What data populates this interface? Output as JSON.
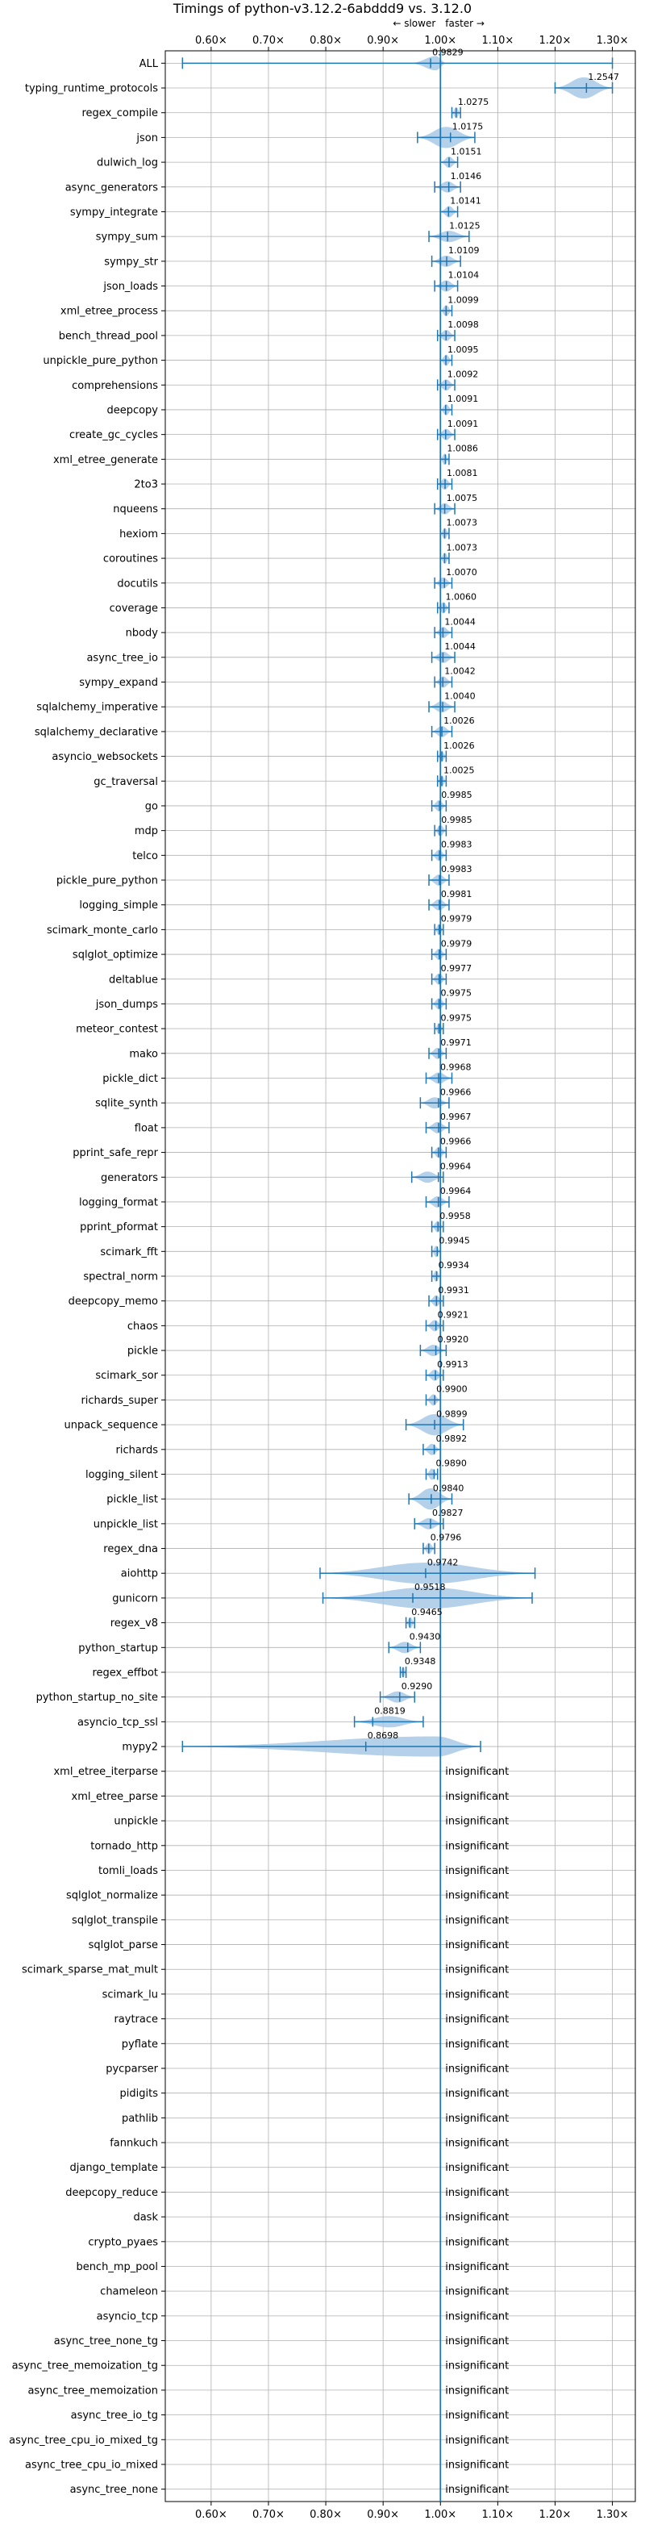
{
  "chart_data": {
    "type": "violin",
    "title": "Timings of python-v3.12.2-6abddd9 vs. 3.12.0",
    "direction_labels": {
      "slower": "← slower",
      "faster": "faster →"
    },
    "xlim": [
      0.52,
      1.34
    ],
    "x_ticks": [
      0.6,
      0.7,
      0.8,
      0.9,
      1.0,
      1.1,
      1.2,
      1.3
    ],
    "x_tick_labels": [
      "0.60×",
      "0.70×",
      "0.80×",
      "0.90×",
      "1.00×",
      "1.10×",
      "1.20×",
      "1.30×"
    ],
    "reference_line": 1.0,
    "grid": true,
    "insignificant_text": "insignificant",
    "benchmarks": [
      {
        "name": "ALL",
        "value": 0.9829,
        "label": "0.9829",
        "min": 0.55,
        "max": 1.3,
        "shape": "all"
      },
      {
        "name": "typing_runtime_protocols",
        "value": 1.2547,
        "label": "1.2547",
        "min": 1.2,
        "max": 1.3,
        "shape": "wide"
      },
      {
        "name": "regex_compile",
        "value": 1.0275,
        "label": "1.0275",
        "min": 1.02,
        "max": 1.035,
        "shape": "box"
      },
      {
        "name": "json",
        "value": 1.0175,
        "label": "1.0175",
        "min": 0.96,
        "max": 1.06,
        "shape": "wide"
      },
      {
        "name": "dulwich_log",
        "value": 1.0151,
        "label": "1.0151",
        "min": 1.0,
        "max": 1.03,
        "shape": "box"
      },
      {
        "name": "async_generators",
        "value": 1.0146,
        "label": "1.0146",
        "min": 0.99,
        "max": 1.035,
        "shape": "box"
      },
      {
        "name": "sympy_integrate",
        "value": 1.0141,
        "label": "1.0141",
        "min": 1.0,
        "max": 1.03,
        "shape": "box"
      },
      {
        "name": "sympy_sum",
        "value": 1.0125,
        "label": "1.0125",
        "min": 0.98,
        "max": 1.05,
        "shape": "box"
      },
      {
        "name": "sympy_str",
        "value": 1.0109,
        "label": "1.0109",
        "min": 0.985,
        "max": 1.035,
        "shape": "box"
      },
      {
        "name": "json_loads",
        "value": 1.0104,
        "label": "1.0104",
        "min": 0.99,
        "max": 1.03,
        "shape": "box"
      },
      {
        "name": "xml_etree_process",
        "value": 1.0099,
        "label": "1.0099",
        "min": 1.0,
        "max": 1.02,
        "shape": "box"
      },
      {
        "name": "bench_thread_pool",
        "value": 1.0098,
        "label": "1.0098",
        "min": 0.995,
        "max": 1.025,
        "shape": "box"
      },
      {
        "name": "unpickle_pure_python",
        "value": 1.0095,
        "label": "1.0095",
        "min": 1.0,
        "max": 1.02,
        "shape": "box"
      },
      {
        "name": "comprehensions",
        "value": 1.0092,
        "label": "1.0092",
        "min": 0.995,
        "max": 1.025,
        "shape": "box"
      },
      {
        "name": "deepcopy",
        "value": 1.0091,
        "label": "1.0091",
        "min": 1.0,
        "max": 1.02,
        "shape": "box"
      },
      {
        "name": "create_gc_cycles",
        "value": 1.0091,
        "label": "1.0091",
        "min": 0.995,
        "max": 1.025,
        "shape": "box"
      },
      {
        "name": "xml_etree_generate",
        "value": 1.0086,
        "label": "1.0086",
        "min": 1.0,
        "max": 1.015,
        "shape": "box"
      },
      {
        "name": "2to3",
        "value": 1.0081,
        "label": "1.0081",
        "min": 0.995,
        "max": 1.02,
        "shape": "box"
      },
      {
        "name": "nqueens",
        "value": 1.0075,
        "label": "1.0075",
        "min": 0.99,
        "max": 1.025,
        "shape": "box"
      },
      {
        "name": "hexiom",
        "value": 1.0073,
        "label": "1.0073",
        "min": 1.0,
        "max": 1.015,
        "shape": "box"
      },
      {
        "name": "coroutines",
        "value": 1.0073,
        "label": "1.0073",
        "min": 1.0,
        "max": 1.015,
        "shape": "box"
      },
      {
        "name": "docutils",
        "value": 1.007,
        "label": "1.0070",
        "min": 0.99,
        "max": 1.02,
        "shape": "box"
      },
      {
        "name": "coverage",
        "value": 1.006,
        "label": "1.0060",
        "min": 0.995,
        "max": 1.015,
        "shape": "box"
      },
      {
        "name": "nbody",
        "value": 1.0044,
        "label": "1.0044",
        "min": 0.99,
        "max": 1.02,
        "shape": "box"
      },
      {
        "name": "async_tree_io",
        "value": 1.0044,
        "label": "1.0044",
        "min": 0.985,
        "max": 1.025,
        "shape": "box"
      },
      {
        "name": "sympy_expand",
        "value": 1.0042,
        "label": "1.0042",
        "min": 0.99,
        "max": 1.02,
        "shape": "box"
      },
      {
        "name": "sqlalchemy_imperative",
        "value": 1.004,
        "label": "1.0040",
        "min": 0.98,
        "max": 1.025,
        "shape": "box"
      },
      {
        "name": "sqlalchemy_declarative",
        "value": 1.0026,
        "label": "1.0026",
        "min": 0.985,
        "max": 1.02,
        "shape": "box"
      },
      {
        "name": "asyncio_websockets",
        "value": 1.0026,
        "label": "1.0026",
        "min": 0.995,
        "max": 1.01,
        "shape": "box"
      },
      {
        "name": "gc_traversal",
        "value": 1.0025,
        "label": "1.0025",
        "min": 0.995,
        "max": 1.01,
        "shape": "box"
      },
      {
        "name": "go",
        "value": 0.9985,
        "label": "0.9985",
        "min": 0.985,
        "max": 1.01,
        "shape": "box"
      },
      {
        "name": "mdp",
        "value": 0.9985,
        "label": "0.9985",
        "min": 0.99,
        "max": 1.01,
        "shape": "box"
      },
      {
        "name": "telco",
        "value": 0.9983,
        "label": "0.9983",
        "min": 0.985,
        "max": 1.01,
        "shape": "box"
      },
      {
        "name": "pickle_pure_python",
        "value": 0.9983,
        "label": "0.9983",
        "min": 0.98,
        "max": 1.015,
        "shape": "box"
      },
      {
        "name": "logging_simple",
        "value": 0.9981,
        "label": "0.9981",
        "min": 0.98,
        "max": 1.015,
        "shape": "box"
      },
      {
        "name": "scimark_monte_carlo",
        "value": 0.9979,
        "label": "0.9979",
        "min": 0.99,
        "max": 1.005,
        "shape": "box"
      },
      {
        "name": "sqlglot_optimize",
        "value": 0.9979,
        "label": "0.9979",
        "min": 0.985,
        "max": 1.01,
        "shape": "box"
      },
      {
        "name": "deltablue",
        "value": 0.9977,
        "label": "0.9977",
        "min": 0.985,
        "max": 1.01,
        "shape": "box"
      },
      {
        "name": "json_dumps",
        "value": 0.9975,
        "label": "0.9975",
        "min": 0.985,
        "max": 1.01,
        "shape": "box"
      },
      {
        "name": "meteor_contest",
        "value": 0.9975,
        "label": "0.9975",
        "min": 0.99,
        "max": 1.005,
        "shape": "box"
      },
      {
        "name": "mako",
        "value": 0.9971,
        "label": "0.9971",
        "min": 0.98,
        "max": 1.01,
        "shape": "box"
      },
      {
        "name": "pickle_dict",
        "value": 0.9968,
        "label": "0.9968",
        "min": 0.975,
        "max": 1.02,
        "shape": "box"
      },
      {
        "name": "sqlite_synth",
        "value": 0.9966,
        "label": "0.9966",
        "min": 0.965,
        "max": 1.015,
        "shape": "box"
      },
      {
        "name": "float",
        "value": 0.9967,
        "label": "0.9967",
        "min": 0.975,
        "max": 1.015,
        "shape": "box"
      },
      {
        "name": "pprint_safe_repr",
        "value": 0.9966,
        "label": "0.9966",
        "min": 0.985,
        "max": 1.01,
        "shape": "box"
      },
      {
        "name": "generators",
        "value": 0.9964,
        "label": "0.9964",
        "min": 0.95,
        "max": 1.005,
        "shape": "box"
      },
      {
        "name": "logging_format",
        "value": 0.9964,
        "label": "0.9964",
        "min": 0.975,
        "max": 1.015,
        "shape": "box"
      },
      {
        "name": "pprint_pformat",
        "value": 0.9958,
        "label": "0.9958",
        "min": 0.985,
        "max": 1.005,
        "shape": "box"
      },
      {
        "name": "scimark_fft",
        "value": 0.9945,
        "label": "0.9945",
        "min": 0.985,
        "max": 1.0,
        "shape": "box"
      },
      {
        "name": "spectral_norm",
        "value": 0.9934,
        "label": "0.9934",
        "min": 0.985,
        "max": 1.0,
        "shape": "box"
      },
      {
        "name": "deepcopy_memo",
        "value": 0.9931,
        "label": "0.9931",
        "min": 0.98,
        "max": 1.005,
        "shape": "box"
      },
      {
        "name": "chaos",
        "value": 0.9921,
        "label": "0.9921",
        "min": 0.975,
        "max": 1.005,
        "shape": "box"
      },
      {
        "name": "pickle",
        "value": 0.992,
        "label": "0.9920",
        "min": 0.965,
        "max": 1.01,
        "shape": "box"
      },
      {
        "name": "scimark_sor",
        "value": 0.9913,
        "label": "0.9913",
        "min": 0.975,
        "max": 1.005,
        "shape": "box"
      },
      {
        "name": "richards_super",
        "value": 0.99,
        "label": "0.9900",
        "min": 0.975,
        "max": 1.0,
        "shape": "box"
      },
      {
        "name": "unpack_sequence",
        "value": 0.9899,
        "label": "0.9899",
        "min": 0.94,
        "max": 1.04,
        "shape": "wide"
      },
      {
        "name": "richards",
        "value": 0.9892,
        "label": "0.9892",
        "min": 0.97,
        "max": 1.0,
        "shape": "box"
      },
      {
        "name": "logging_silent",
        "value": 0.989,
        "label": "0.9890",
        "min": 0.975,
        "max": 0.995,
        "shape": "box"
      },
      {
        "name": "pickle_list",
        "value": 0.984,
        "label": "0.9840",
        "min": 0.945,
        "max": 1.02,
        "shape": "wide"
      },
      {
        "name": "unpickle_list",
        "value": 0.9827,
        "label": "0.9827",
        "min": 0.955,
        "max": 1.005,
        "shape": "box"
      },
      {
        "name": "regex_dna",
        "value": 0.9796,
        "label": "0.9796",
        "min": 0.97,
        "max": 0.99,
        "shape": "box"
      },
      {
        "name": "aiohttp",
        "value": 0.9742,
        "label": "0.9742",
        "min": 0.79,
        "max": 1.165,
        "shape": "wide"
      },
      {
        "name": "gunicorn",
        "value": 0.9518,
        "label": "0.9518",
        "min": 0.795,
        "max": 1.16,
        "shape": "wide"
      },
      {
        "name": "regex_v8",
        "value": 0.9465,
        "label": "0.9465",
        "min": 0.94,
        "max": 0.955,
        "shape": "box"
      },
      {
        "name": "python_startup",
        "value": 0.943,
        "label": "0.9430",
        "min": 0.91,
        "max": 0.965,
        "shape": "box"
      },
      {
        "name": "regex_effbot",
        "value": 0.9348,
        "label": "0.9348",
        "min": 0.93,
        "max": 0.94,
        "shape": "box"
      },
      {
        "name": "python_startup_no_site",
        "value": 0.929,
        "label": "0.9290",
        "min": 0.895,
        "max": 0.955,
        "shape": "box"
      },
      {
        "name": "asyncio_tcp_ssl",
        "value": 0.8819,
        "label": "0.8819",
        "min": 0.85,
        "max": 0.97,
        "shape": "box"
      },
      {
        "name": "mypy2",
        "value": 0.8698,
        "label": "0.8698",
        "min": 0.55,
        "max": 1.07,
        "shape": "mypy"
      },
      {
        "name": "xml_etree_iterparse",
        "insignificant": true
      },
      {
        "name": "xml_etree_parse",
        "insignificant": true
      },
      {
        "name": "unpickle",
        "insignificant": true
      },
      {
        "name": "tornado_http",
        "insignificant": true
      },
      {
        "name": "tomli_loads",
        "insignificant": true
      },
      {
        "name": "sqlglot_normalize",
        "insignificant": true
      },
      {
        "name": "sqlglot_transpile",
        "insignificant": true
      },
      {
        "name": "sqlglot_parse",
        "insignificant": true
      },
      {
        "name": "scimark_sparse_mat_mult",
        "insignificant": true
      },
      {
        "name": "scimark_lu",
        "insignificant": true
      },
      {
        "name": "raytrace",
        "insignificant": true
      },
      {
        "name": "pyflate",
        "insignificant": true
      },
      {
        "name": "pycparser",
        "insignificant": true
      },
      {
        "name": "pidigits",
        "insignificant": true
      },
      {
        "name": "pathlib",
        "insignificant": true
      },
      {
        "name": "fannkuch",
        "insignificant": true
      },
      {
        "name": "django_template",
        "insignificant": true
      },
      {
        "name": "deepcopy_reduce",
        "insignificant": true
      },
      {
        "name": "dask",
        "insignificant": true
      },
      {
        "name": "crypto_pyaes",
        "insignificant": true
      },
      {
        "name": "bench_mp_pool",
        "insignificant": true
      },
      {
        "name": "chameleon",
        "insignificant": true
      },
      {
        "name": "asyncio_tcp",
        "insignificant": true
      },
      {
        "name": "async_tree_none_tg",
        "insignificant": true
      },
      {
        "name": "async_tree_memoization_tg",
        "insignificant": true
      },
      {
        "name": "async_tree_memoization",
        "insignificant": true
      },
      {
        "name": "async_tree_io_tg",
        "insignificant": true
      },
      {
        "name": "async_tree_cpu_io_mixed_tg",
        "insignificant": true
      },
      {
        "name": "async_tree_cpu_io_mixed",
        "insignificant": true
      },
      {
        "name": "async_tree_none",
        "insignificant": true
      }
    ],
    "colors": {
      "violin_fill": "#a9c8e6",
      "line": "#1f77b4",
      "grid": "#b0b0b0",
      "median_marker": "#d9534f"
    }
  }
}
